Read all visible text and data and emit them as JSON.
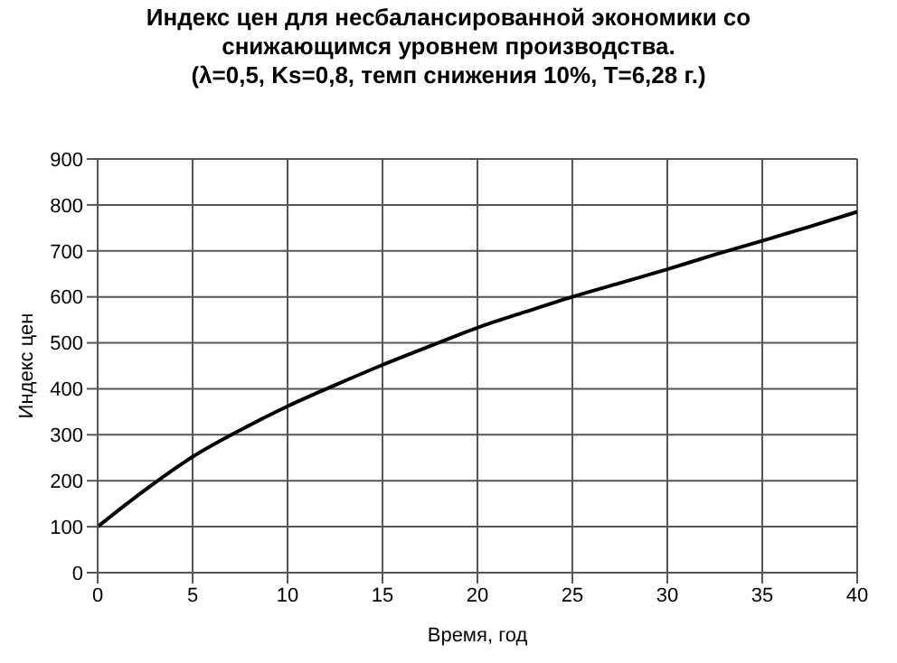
{
  "chart_data": {
    "type": "line",
    "title": "Индекс цен для несбалансированной экономики со снижающимся уровнем производства.\n(λ=0,5, Ks=0,8, темп снижения 10%, T=6,28 г.)",
    "xlabel": "Время, год",
    "ylabel": "Индекс цен",
    "x": [
      0,
      2.5,
      5,
      7.5,
      10,
      12.5,
      15,
      17.5,
      20,
      22.5,
      25,
      27.5,
      30,
      32.5,
      35,
      37.5,
      40
    ],
    "series": [
      {
        "color": "#000000",
        "values": [
          100,
          180,
          252,
          310,
          362,
          408,
          452,
          493,
          533,
          567,
          600,
          630,
          660,
          692,
          722,
          753,
          785
        ]
      }
    ],
    "xlim": [
      0,
      40
    ],
    "xticks": [
      0,
      5,
      10,
      15,
      20,
      25,
      30,
      35,
      40
    ],
    "ylim": [
      0,
      900
    ],
    "yticks": [
      0,
      100,
      200,
      300,
      400,
      500,
      600,
      700,
      800,
      900
    ],
    "grid": true,
    "legend": false,
    "marker": "none",
    "line_style": "solid"
  }
}
